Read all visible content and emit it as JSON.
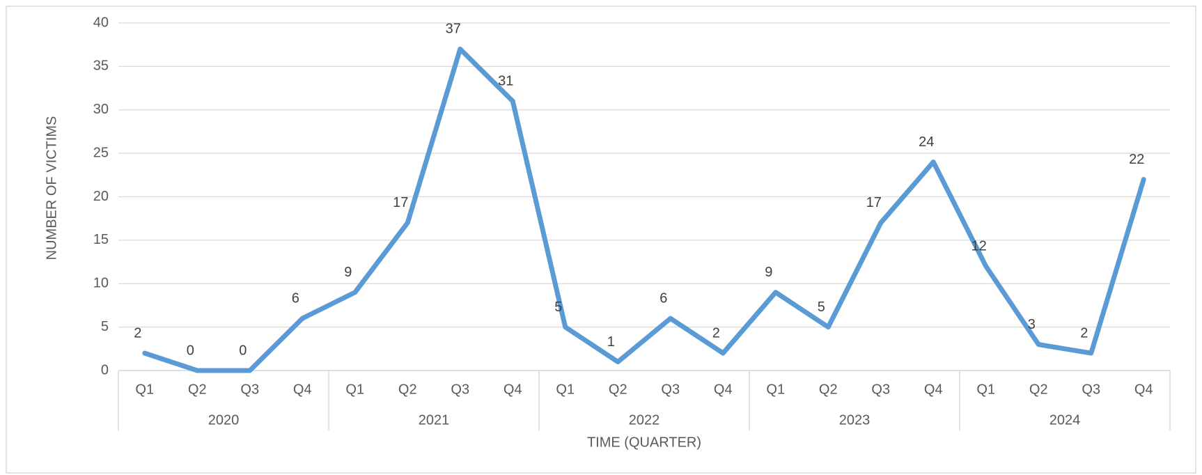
{
  "chart_data": {
    "type": "line",
    "x_label": "TIME (QUARTER)",
    "y_label": "NUMBER OF VICTIMS",
    "categories": [
      "Q1",
      "Q2",
      "Q3",
      "Q4",
      "Q1",
      "Q2",
      "Q3",
      "Q4",
      "Q1",
      "Q2",
      "Q3",
      "Q4",
      "Q1",
      "Q2",
      "Q3",
      "Q4",
      "Q1",
      "Q2",
      "Q3",
      "Q4"
    ],
    "category_groups": [
      "2020",
      "2021",
      "2022",
      "2023",
      "2024"
    ],
    "series": [
      {
        "name": "Victims",
        "color": "#5b9bd5",
        "values": [
          2,
          0,
          0,
          6,
          9,
          17,
          37,
          31,
          5,
          1,
          6,
          2,
          9,
          5,
          17,
          24,
          12,
          3,
          2,
          22
        ]
      }
    ],
    "ylim": [
      0,
      40
    ],
    "yticks": [
      0,
      5,
      10,
      15,
      20,
      25,
      30,
      35,
      40
    ],
    "grid": true
  }
}
